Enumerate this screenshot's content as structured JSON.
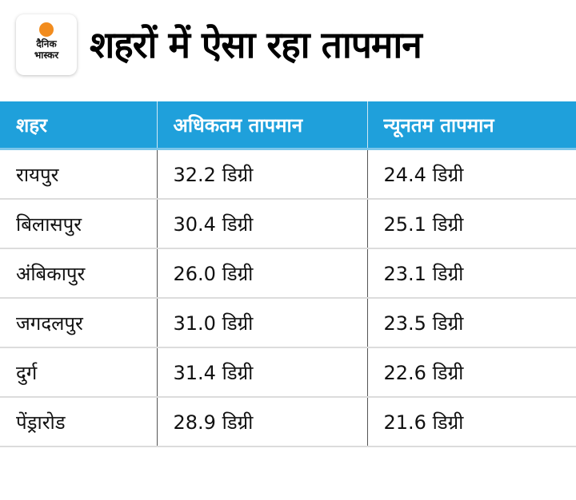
{
  "logo": {
    "line1": "दैनिक",
    "line2": "भास्कर",
    "accent": "#f28c1e"
  },
  "title": "शहरों में ऐसा रहा तापमान",
  "header_color": "#1fa0db",
  "columns": [
    "शहर",
    "अधिकतम तापमान",
    "न्यूनतम तापमान"
  ],
  "rows": [
    [
      "रायपुर",
      "32.2 डिग्री",
      "24.4 डिग्री"
    ],
    [
      "बिलासपुर",
      "30.4 डिग्री",
      "25.1 डिग्री"
    ],
    [
      "अंबिकापुर",
      "26.0 डिग्री",
      "23.1 डिग्री"
    ],
    [
      "जगदलपुर",
      "31.0 डिग्री",
      "23.5 डिग्री"
    ],
    [
      "दुर्ग",
      "31.4 डिग्री",
      "22.6 डिग्री"
    ],
    [
      "पेंड्रारोड",
      "28.9 डिग्री",
      "21.6 डिग्री"
    ]
  ]
}
